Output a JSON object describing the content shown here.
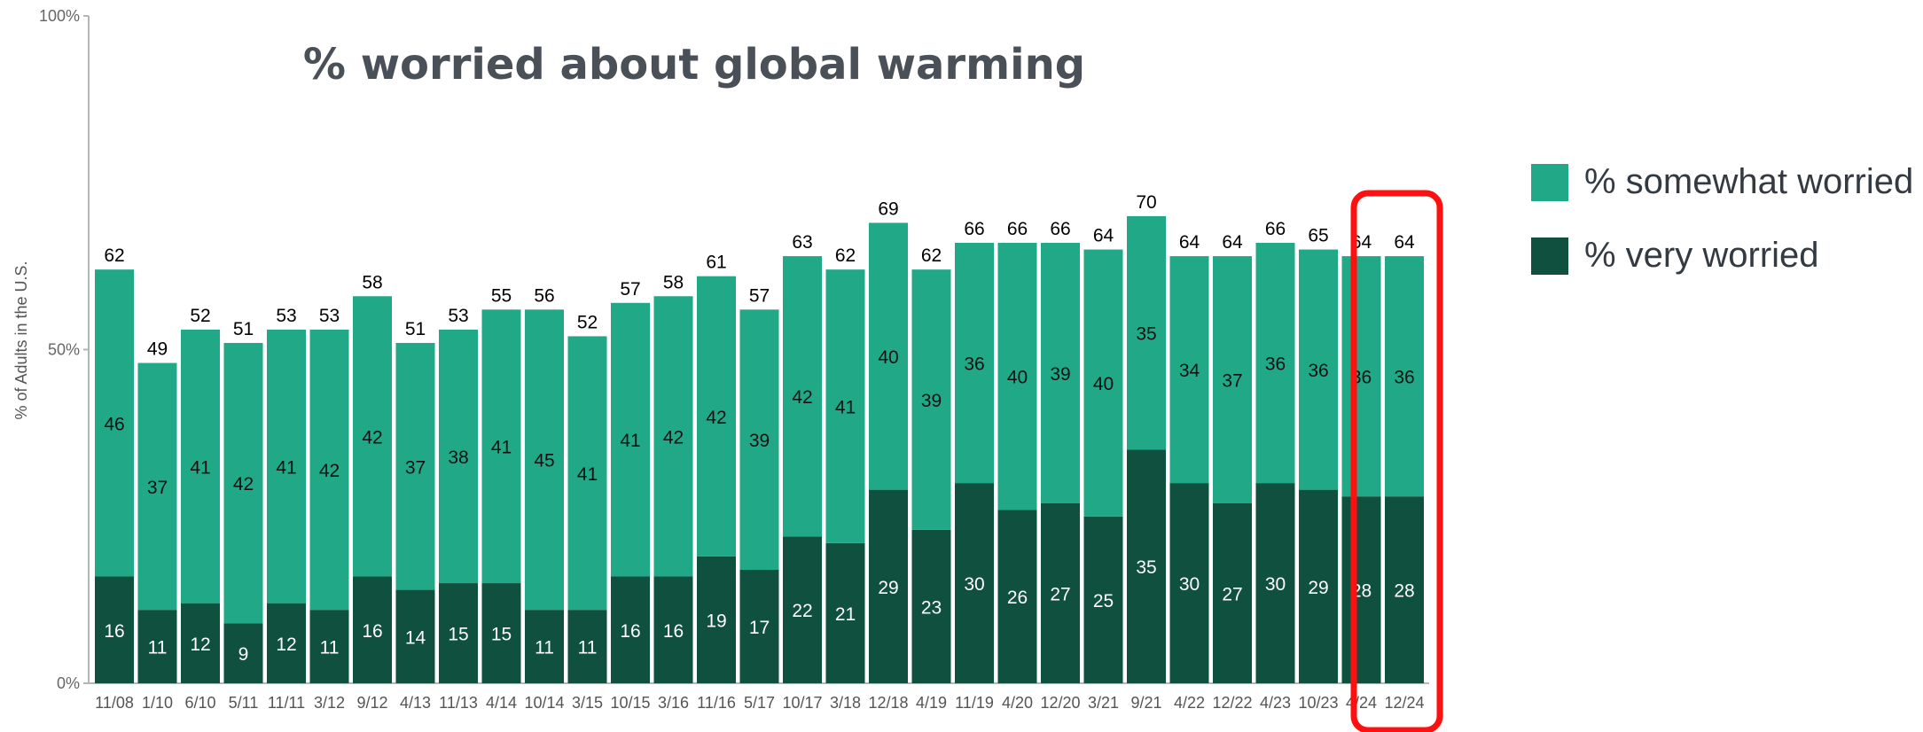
{
  "chart_data": {
    "type": "bar",
    "stacked": true,
    "title": "% worried about global warming",
    "ylabel": "% of Adults in the U.S.",
    "ylim": [
      0,
      100
    ],
    "yticks": [
      "0%",
      "50%",
      "100%"
    ],
    "categories": [
      "11/08",
      "1/10",
      "6/10",
      "5/11",
      "11/11",
      "3/12",
      "9/12",
      "4/13",
      "11/13",
      "4/14",
      "10/14",
      "3/15",
      "10/15",
      "3/16",
      "11/16",
      "5/17",
      "10/17",
      "3/18",
      "12/18",
      "4/19",
      "11/19",
      "4/20",
      "12/20",
      "3/21",
      "9/21",
      "4/22",
      "12/22",
      "4/23",
      "10/23",
      "4/24",
      "12/24"
    ],
    "series": [
      {
        "name": "% very worried",
        "color": "#10503f",
        "values": [
          16,
          11,
          12,
          9,
          12,
          11,
          16,
          14,
          15,
          15,
          11,
          11,
          16,
          16,
          19,
          17,
          22,
          21,
          29,
          23,
          30,
          26,
          27,
          25,
          35,
          30,
          27,
          30,
          29,
          28,
          28
        ]
      },
      {
        "name": "% somewhat worried",
        "color": "#21a886",
        "values": [
          46,
          37,
          41,
          42,
          41,
          42,
          42,
          37,
          38,
          41,
          45,
          41,
          41,
          42,
          42,
          39,
          42,
          41,
          40,
          39,
          36,
          40,
          39,
          40,
          35,
          34,
          37,
          36,
          36,
          36,
          36
        ]
      }
    ],
    "totals": [
      62,
      49,
      52,
      51,
      53,
      53,
      58,
      51,
      53,
      55,
      56,
      52,
      57,
      58,
      61,
      57,
      63,
      62,
      69,
      62,
      66,
      66,
      66,
      64,
      70,
      64,
      64,
      66,
      65,
      64,
      64
    ],
    "legend_position": "right",
    "highlight": {
      "category": "12/24",
      "color": "#ff1010"
    }
  }
}
